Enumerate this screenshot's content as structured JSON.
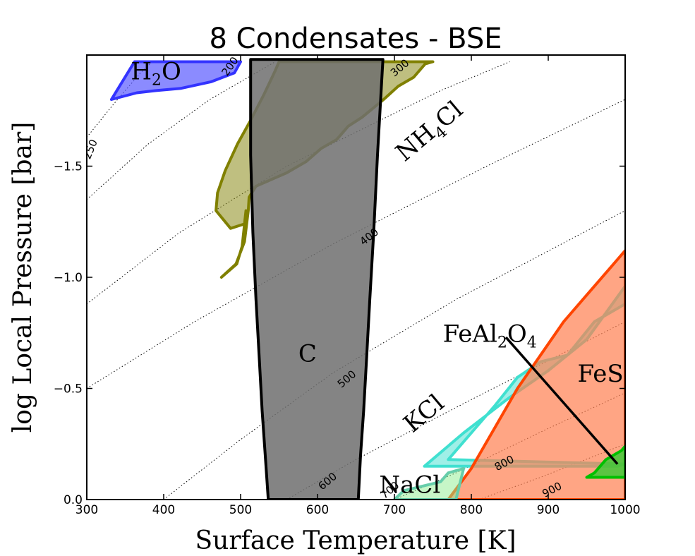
{
  "chart_data": {
    "type": "area",
    "title": "8 Condensates - BSE",
    "xlabel": "Surface Temperature [K]",
    "ylabel": "log Local Pressure [bar]",
    "xlim": [
      300,
      1000
    ],
    "ylim": [
      0.0,
      2.0
    ],
    "x_ticks": [
      300,
      400,
      500,
      600,
      700,
      800,
      900,
      1000
    ],
    "x_tick_labels": [
      "300",
      "400",
      "500",
      "600",
      "700",
      "800",
      "900",
      "1000"
    ],
    "y_ticks": [
      0.0,
      0.5,
      1.0,
      1.5
    ],
    "y_tick_labels": [
      "0.0",
      "−0.5",
      "−1.0",
      "−1.5"
    ],
    "grid": false,
    "series": [
      {
        "name": "H2O",
        "label_main": "H",
        "label_sub": "2",
        "label_tail": "O",
        "color": "#3333ff",
        "fill": "#5a5aff",
        "fill_opacity": 0.7,
        "polygon": [
          [
            332,
            1.8
          ],
          [
            362,
            1.97
          ],
          [
            500,
            1.97
          ],
          [
            492,
            1.92
          ],
          [
            462,
            1.88
          ],
          [
            422,
            1.85
          ],
          [
            390,
            1.84
          ],
          [
            365,
            1.83
          ],
          [
            332,
            1.8
          ]
        ]
      },
      {
        "name": "NH4Cl",
        "label_main": "NH",
        "label_sub": "4",
        "label_tail": "Cl",
        "color": "#808000",
        "fill": "#8a8a18",
        "fill_opacity": 0.55,
        "polygon": [
          [
            475,
            1.0
          ],
          [
            494,
            1.06
          ],
          [
            505,
            1.16
          ],
          [
            510,
            1.3
          ],
          [
            511,
            1.36
          ],
          [
            520,
            1.41
          ],
          [
            560,
            1.47
          ],
          [
            585,
            1.52
          ],
          [
            605,
            1.58
          ],
          [
            625,
            1.62
          ],
          [
            640,
            1.68
          ],
          [
            658,
            1.72
          ],
          [
            672,
            1.76
          ],
          [
            686,
            1.8
          ],
          [
            705,
            1.86
          ],
          [
            725,
            1.9
          ],
          [
            740,
            1.96
          ],
          [
            750,
            1.97
          ],
          [
            550,
            1.97
          ],
          [
            545,
            1.93
          ],
          [
            530,
            1.82
          ],
          [
            512,
            1.7
          ],
          [
            496,
            1.6
          ],
          [
            480,
            1.48
          ],
          [
            470,
            1.38
          ],
          [
            468,
            1.3
          ],
          [
            487,
            1.22
          ],
          [
            505,
            1.24
          ],
          [
            507,
            1.3
          ],
          [
            502,
            1.14
          ],
          [
            495,
            1.06
          ],
          [
            475,
            1.0
          ]
        ]
      },
      {
        "name": "C",
        "label_main": "C",
        "label_sub": "",
        "label_tail": "",
        "color": "#000000",
        "fill": "#6e6e6e",
        "fill_opacity": 0.85,
        "polygon": [
          [
            513,
            1.98
          ],
          [
            513,
            1.55
          ],
          [
            516,
            1.2
          ],
          [
            520,
            0.9
          ],
          [
            524,
            0.65
          ],
          [
            528,
            0.4
          ],
          [
            532,
            0.2
          ],
          [
            536,
            0.0
          ],
          [
            653,
            0.0
          ],
          [
            656,
            0.2
          ],
          [
            660,
            0.4
          ],
          [
            664,
            0.65
          ],
          [
            668,
            0.9
          ],
          [
            673,
            1.2
          ],
          [
            678,
            1.55
          ],
          [
            685,
            1.98
          ],
          [
            513,
            1.98
          ]
        ]
      },
      {
        "name": "KCl",
        "label_main": "KCl",
        "label_sub": "",
        "label_tail": "",
        "color": "#40e0d0",
        "fill": "#40e0d0",
        "fill_opacity": 0.5,
        "polygon": [
          [
            739,
            0.15
          ],
          [
            790,
            0.3
          ],
          [
            850,
            0.46
          ],
          [
            900,
            0.58
          ],
          [
            950,
            0.72
          ],
          [
            1000,
            0.96
          ],
          [
            1000,
            0.88
          ],
          [
            960,
            0.8
          ],
          [
            925,
            0.65
          ],
          [
            890,
            0.62
          ],
          [
            860,
            0.55
          ],
          [
            830,
            0.42
          ],
          [
            800,
            0.3
          ],
          [
            770,
            0.18
          ],
          [
            1000,
            0.16
          ],
          [
            990,
            0.15
          ],
          [
            739,
            0.15
          ]
        ]
      },
      {
        "name": "FeS",
        "label_main": "FeS",
        "label_sub": "",
        "label_tail": "",
        "color": "#ff4500",
        "fill": "#ff7f50",
        "fill_opacity": 0.7,
        "polygon": [
          [
            770,
            0.0
          ],
          [
            800,
            0.14
          ],
          [
            830,
            0.32
          ],
          [
            860,
            0.5
          ],
          [
            890,
            0.65
          ],
          [
            920,
            0.8
          ],
          [
            950,
            0.92
          ],
          [
            975,
            1.02
          ],
          [
            1000,
            1.12
          ],
          [
            1000,
            0.0
          ],
          [
            770,
            0.0
          ]
        ]
      },
      {
        "name": "NaCl",
        "label_main": "NaCl",
        "label_sub": "",
        "label_tail": "",
        "color": "#66cdaa",
        "fill": "#90ee90",
        "fill_opacity": 0.5,
        "polygon": [
          [
            700,
            0.0
          ],
          [
            712,
            0.04
          ],
          [
            760,
            0.08
          ],
          [
            770,
            0.12
          ],
          [
            790,
            0.14
          ],
          [
            780,
            0.0
          ],
          [
            700,
            0.0
          ]
        ]
      },
      {
        "name": "FeAl2O4",
        "label_main": "FeAl",
        "label_sub": "2",
        "label_tail": "O",
        "label_sub2": "4",
        "color": "#00c000",
        "fill": "#33cc33",
        "fill_opacity": 0.8,
        "polygon": [
          [
            960,
            0.12
          ],
          [
            975,
            0.18
          ],
          [
            995,
            0.22
          ],
          [
            1000,
            0.24
          ],
          [
            1000,
            0.1
          ],
          [
            950,
            0.1
          ],
          [
            960,
            0.12
          ]
        ]
      }
    ],
    "feal2o4_boundary": [
      [
        845,
        0.73
      ],
      [
        990,
        0.16
      ]
    ],
    "contours": [
      {
        "label": "250",
        "points": [
          [
            300,
            1.63
          ],
          [
            335,
            1.78
          ],
          [
            370,
            1.92
          ],
          [
            385,
            1.97
          ]
        ]
      },
      {
        "label": "300",
        "points": [
          [
            300,
            1.35
          ],
          [
            380,
            1.6
          ],
          [
            460,
            1.8
          ],
          [
            545,
            1.97
          ]
        ]
      },
      {
        "label": "400",
        "points": [
          [
            300,
            0.88
          ],
          [
            420,
            1.2
          ],
          [
            560,
            1.5
          ],
          [
            760,
            1.84
          ],
          [
            850,
            1.97
          ]
        ]
      },
      {
        "label": "500",
        "points": [
          [
            300,
            0.5
          ],
          [
            440,
            0.8
          ],
          [
            620,
            1.15
          ],
          [
            820,
            1.5
          ],
          [
            1000,
            1.8
          ]
        ]
      },
      {
        "label": "600",
        "points": [
          [
            400,
            0.0
          ],
          [
            500,
            0.27
          ],
          [
            620,
            0.57
          ],
          [
            780,
            0.9
          ],
          [
            1000,
            1.3
          ]
        ]
      },
      {
        "label": "700",
        "points": [
          [
            560,
            0.0
          ],
          [
            650,
            0.18
          ],
          [
            800,
            0.45
          ],
          [
            1000,
            0.8
          ]
        ]
      },
      {
        "label": "800",
        "points": [
          [
            700,
            0.0
          ],
          [
            780,
            0.12
          ],
          [
            900,
            0.32
          ],
          [
            1000,
            0.48
          ]
        ]
      },
      {
        "label": "900",
        "points": [
          [
            810,
            0.0
          ],
          [
            890,
            0.1
          ],
          [
            1000,
            0.25
          ]
        ]
      }
    ],
    "contour_labels": [
      {
        "text": "250",
        "x": 309,
        "y": 1.57,
        "angle": -68
      },
      {
        "text": "200",
        "x": 490,
        "y": 1.94,
        "angle": -55
      },
      {
        "text": "300",
        "x": 710,
        "y": 1.93,
        "angle": -40
      },
      {
        "text": "400",
        "x": 670,
        "y": 1.17,
        "angle": -38
      },
      {
        "text": "500",
        "x": 641,
        "y": 0.53,
        "angle": -40
      },
      {
        "text": "600",
        "x": 616,
        "y": 0.07,
        "angle": -40
      },
      {
        "text": "700",
        "x": 697,
        "y": 0.03,
        "angle": -40
      },
      {
        "text": "800",
        "x": 845,
        "y": 0.15,
        "angle": -28
      },
      {
        "text": "900",
        "x": 907,
        "y": 0.03,
        "angle": -28
      }
    ],
    "region_labels": [
      {
        "series": "H2O",
        "x": 390,
        "y": 1.89,
        "angle": 0
      },
      {
        "series": "NH4Cl",
        "x": 752,
        "y": 1.63,
        "angle": -40
      },
      {
        "series": "C",
        "x": 587,
        "y": 0.62,
        "angle": 0
      },
      {
        "series": "KCl",
        "x": 745,
        "y": 0.36,
        "angle": -40
      },
      {
        "series": "FeS",
        "x": 968,
        "y": 0.53,
        "angle": 0
      },
      {
        "series": "NaCl",
        "x": 720,
        "y": 0.03,
        "angle": 0
      },
      {
        "series": "FeAl2O4",
        "x": 824,
        "y": 0.71,
        "angle": 0
      }
    ]
  }
}
